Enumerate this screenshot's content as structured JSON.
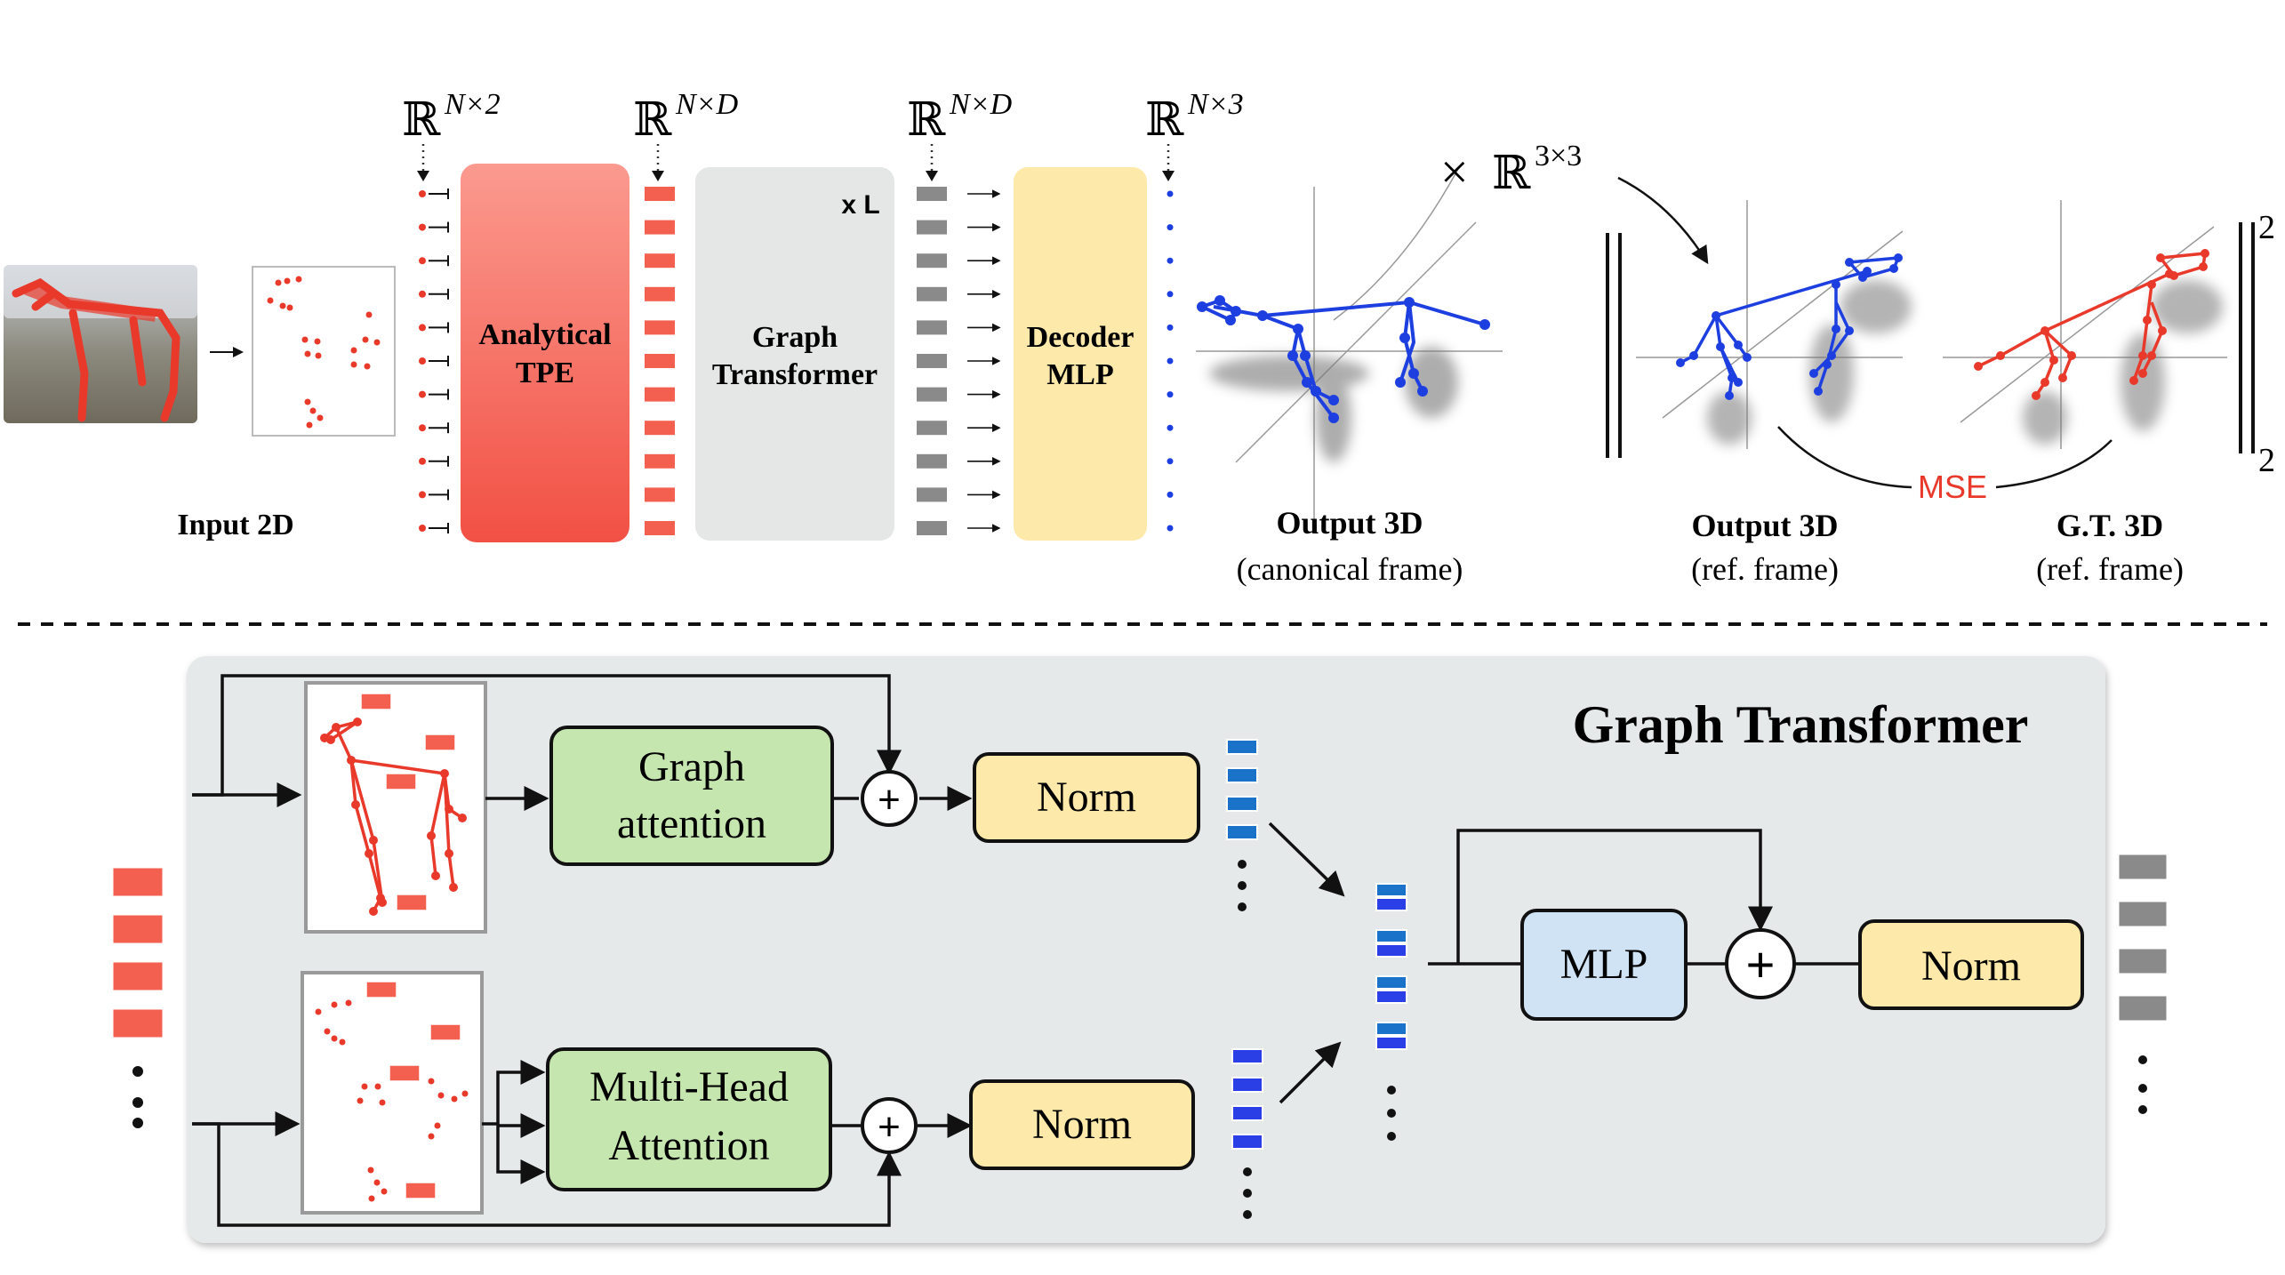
{
  "top": {
    "input_caption": "Input 2D",
    "dims": [
      {
        "base": "ℝ",
        "sup": "N×2"
      },
      {
        "base": "ℝ",
        "sup": "N×D"
      },
      {
        "base": "ℝ",
        "sup": "N×D"
      },
      {
        "base": "ℝ",
        "sup": "N×3"
      }
    ],
    "tpe_line1": "Analytical",
    "tpe_line2": "TPE",
    "gt_line1": "Graph",
    "gt_line2": "Transformer",
    "repeat_label": "x L",
    "decoder_line1": "Decoder",
    "decoder_line2": "MLP",
    "rot_times": "×",
    "rot_base": "ℝ",
    "rot_sup": "3×3",
    "out_canonical_title": "Output 3D",
    "out_canonical_sub": "(canonical frame)",
    "out_ref_title": "Output 3D",
    "out_ref_sub": "(ref. frame)",
    "gt_ref_title": "G.T. 3D",
    "gt_ref_sub": "(ref. frame)",
    "mse_label": "MSE",
    "norm_sub": "2",
    "norm_sup": "2"
  },
  "bottom": {
    "title": "Graph Transformer",
    "graph_attention_line1": "Graph",
    "graph_attention_line2": "attention",
    "mha_line1": "Multi-Head",
    "mha_line2": "Attention",
    "plus": "+",
    "norm_label": "Norm",
    "mlp_label": "MLP"
  },
  "colors": {
    "red": "#e8392b",
    "tpe_top": "#fb9a8f",
    "tpe_bottom": "#f25044",
    "gt_gray": "#e5e7e7",
    "decoder_yellow": "#fde9a9",
    "blue_joint": "#1d3fe0",
    "green_box": "#c6e6b0",
    "norm_yellow": "#fde9a9",
    "mlp_blue": "#cfe3f5",
    "panel_gray": "#e6e9ea",
    "feature_gray": "#8a8a8a"
  },
  "icons": [
    "dog-photo-image",
    "keypoint-scatter-plot",
    "skeleton-3d-plot",
    "plus-icon",
    "arrow-icon",
    "ellipsis-dots-icon"
  ]
}
